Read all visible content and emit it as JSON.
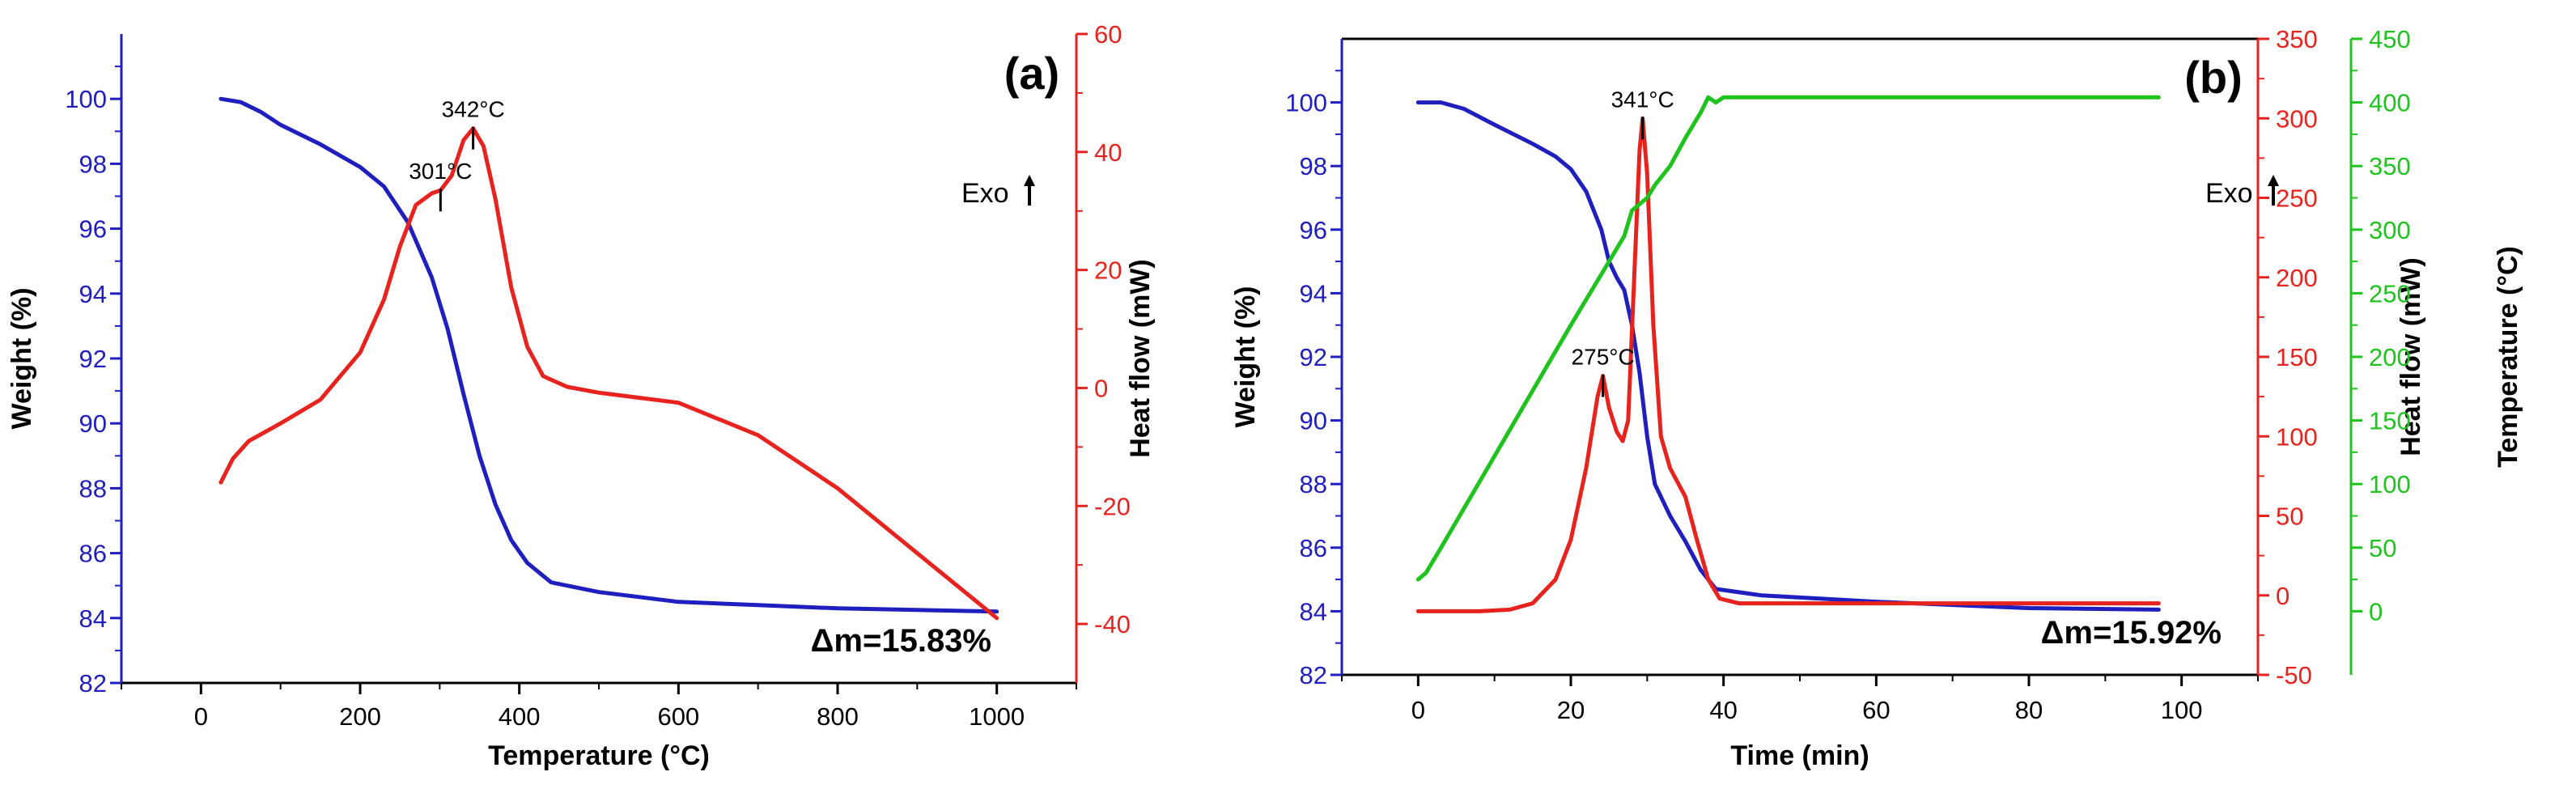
{
  "chart_data": [
    {
      "type": "line",
      "panel_label": "(a)",
      "xlabel": "Temperature (°C)",
      "xlim": [
        -100,
        1100
      ],
      "xticks": [
        0,
        200,
        400,
        600,
        800,
        1000
      ],
      "y_axes": [
        {
          "side": "left",
          "label": "Weight (%)",
          "color": "#1f1fbf",
          "lim": [
            82,
            102
          ],
          "ticks": [
            82,
            84,
            86,
            88,
            90,
            92,
            94,
            96,
            98,
            100
          ]
        },
        {
          "side": "right",
          "label": "Heat flow (mW)",
          "color": "#e8231e",
          "lim": [
            -50,
            60
          ],
          "ticks": [
            -40,
            -20,
            0,
            20,
            40,
            60
          ]
        }
      ],
      "series": [
        {
          "name": "Weight",
          "axis": 0,
          "color": "#1f1fbf",
          "x": [
            25,
            50,
            75,
            100,
            150,
            200,
            230,
            260,
            290,
            310,
            330,
            350,
            370,
            390,
            410,
            440,
            500,
            600,
            700,
            800,
            900,
            1000
          ],
          "y": [
            100,
            99.9,
            99.6,
            99.2,
            98.6,
            97.9,
            97.3,
            96.2,
            94.5,
            92.9,
            90.9,
            89.0,
            87.5,
            86.4,
            85.7,
            85.1,
            84.8,
            84.5,
            84.4,
            84.3,
            84.25,
            84.2
          ]
        },
        {
          "name": "Heat flow",
          "axis": 1,
          "color": "#e8231e",
          "x": [
            25,
            40,
            60,
            100,
            150,
            200,
            230,
            250,
            270,
            290,
            301,
            315,
            330,
            342,
            355,
            370,
            390,
            410,
            430,
            460,
            500,
            600,
            700,
            800,
            900,
            1000
          ],
          "y": [
            -16,
            -12,
            -9,
            -6,
            -2,
            6,
            15,
            24,
            31,
            33,
            33.5,
            36,
            42,
            44,
            41,
            32,
            17,
            7,
            2,
            0.2,
            -0.8,
            -2.5,
            -8,
            -17,
            -28,
            -39
          ]
        }
      ],
      "annotations": [
        {
          "text": "342°C",
          "x": 342,
          "y": 44,
          "axis": 1
        },
        {
          "text": "301°C",
          "x": 301,
          "y": 33.5,
          "axis": 1
        }
      ],
      "exo_label": "Exo",
      "mass_loss_label": "Δm=15.83%"
    },
    {
      "type": "line",
      "panel_label": "(b)",
      "xlabel": "Time (min)",
      "xlim": [
        -10,
        110
      ],
      "xticks": [
        0,
        20,
        40,
        60,
        80,
        100
      ],
      "y_axes": [
        {
          "side": "left",
          "label": "Weight (%)",
          "color": "#1f1fbf",
          "lim": [
            82,
            102
          ],
          "ticks": [
            82,
            84,
            86,
            88,
            90,
            92,
            94,
            96,
            98,
            100
          ]
        },
        {
          "side": "right",
          "label": "Heat flow (mW)",
          "color": "#e8231e",
          "lim": [
            -50,
            350
          ],
          "ticks": [
            -50,
            0,
            50,
            100,
            150,
            200,
            250,
            300,
            350
          ]
        },
        {
          "side": "right",
          "label": "Temperature (°C)",
          "color": "#1ec31e",
          "lim": [
            -50,
            450
          ],
          "ticks": [
            0,
            50,
            100,
            150,
            200,
            250,
            300,
            350,
            400,
            450
          ]
        }
      ],
      "series": [
        {
          "name": "Weight",
          "axis": 0,
          "color": "#1f1fbf",
          "x": [
            0,
            3,
            6,
            10,
            15,
            18,
            20,
            22,
            24,
            25,
            26,
            27,
            28,
            29,
            30,
            31,
            33,
            35,
            37,
            39,
            45,
            60,
            80,
            97
          ],
          "y": [
            100,
            100,
            99.8,
            99.3,
            98.7,
            98.3,
            97.9,
            97.2,
            96.0,
            95.0,
            94.5,
            94.1,
            93.0,
            91.5,
            89.5,
            88.0,
            87.0,
            86.2,
            85.3,
            84.7,
            84.5,
            84.3,
            84.1,
            84.05
          ]
        },
        {
          "name": "Heat flow",
          "axis": 1,
          "color": "#e8231e",
          "x": [
            0,
            8,
            12,
            15,
            18,
            20,
            22,
            23.5,
            24.2,
            25,
            26,
            26.8,
            27.5,
            28.3,
            29.0,
            29.4,
            30.0,
            30.8,
            31.8,
            33,
            35,
            36.5,
            38,
            39.5,
            42,
            50,
            97
          ],
          "y": [
            -10,
            -10,
            -9,
            -5,
            10,
            35,
            80,
            125,
            138,
            118,
            103,
            97,
            110,
            200,
            280,
            300,
            265,
            170,
            100,
            80,
            62,
            35,
            10,
            -2,
            -5,
            -5,
            -5
          ]
        },
        {
          "name": "Temperature",
          "axis": 2,
          "color": "#1ec31e",
          "x": [
            0,
            1,
            3,
            10,
            20,
            25,
            27,
            28,
            30,
            31,
            33,
            35,
            37,
            38,
            39,
            40,
            97
          ],
          "y": [
            25,
            30,
            50,
            122,
            225,
            275,
            295,
            315,
            325,
            335,
            350,
            372,
            392,
            404,
            400,
            404,
            404
          ]
        }
      ],
      "annotations": [
        {
          "text": "341°C",
          "x": 29.4,
          "y": 300,
          "axis": 1
        },
        {
          "text": "275°C",
          "x": 24.2,
          "y": 138,
          "axis": 1
        }
      ],
      "exo_label": "Exo",
      "mass_loss_label": "Δm=15.92%"
    }
  ]
}
